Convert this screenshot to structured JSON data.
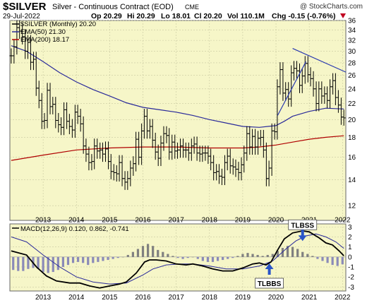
{
  "header": {
    "symbol": "$SILVER",
    "description": "Silver - Continuous Contract (EOD)",
    "exchange": "CME",
    "date": "29-Jul-2022",
    "watermark": "@ StockCharts.com",
    "open": "Op 20.29",
    "high": "Hi 20.29",
    "low": "Lo 18.01",
    "close": "Cl 20.20",
    "volume": "Vol 110.1M",
    "change": "Chg -0.15 (-0.76%)",
    "change_arrow": "down-triangle-icon"
  },
  "colors": {
    "panel_bg": "#f6f6c8",
    "price": "#000000",
    "ema50": "#2a2a9a",
    "ema200": "#b00000",
    "trendline": "#2a3ab0",
    "histogram": "#8a8ab8",
    "histogram_positive": "#808080",
    "arrow": "#2a55c8",
    "down": "#c00020"
  },
  "chart_data": [
    {
      "type": "candlestick",
      "title": "$SILVER Silver - Continuous Contract (EOD) CME",
      "frequency": "Monthly",
      "legend": [
        {
          "label": "$SILVER (Monthly) 20.20",
          "color": "#000000",
          "marker": "line"
        },
        {
          "label": "EMA(50) 21.30",
          "color": "#2a2a9a",
          "marker": "line"
        },
        {
          "label": "EMA(200) 18.17",
          "color": "#b00000",
          "marker": "line"
        }
      ],
      "legend_position": "top-left",
      "y_scale": "log",
      "ylim": [
        11,
        36
      ],
      "y_ticks": [
        12,
        14,
        16,
        18,
        20,
        22,
        24,
        26,
        28,
        30,
        32,
        34,
        36
      ],
      "x_range": [
        2012.5,
        2022.6
      ],
      "x_ticks": [
        "2013",
        "2014",
        "2015",
        "2016",
        "2017",
        "2018",
        "2019",
        "2020",
        "2021",
        "2022"
      ],
      "grid": true,
      "close_series": [
        [
          2012.54,
          29.2
        ],
        [
          2012.625,
          30.8
        ],
        [
          2012.71,
          34.5
        ],
        [
          2012.79,
          33.8
        ],
        [
          2012.875,
          32.7
        ],
        [
          2012.96,
          30.0
        ],
        [
          2013.04,
          31.6
        ],
        [
          2013.125,
          28.1
        ],
        [
          2013.21,
          28.6
        ],
        [
          2013.29,
          24.1
        ],
        [
          2013.375,
          22.4
        ],
        [
          2013.46,
          19.8
        ],
        [
          2013.54,
          19.9
        ],
        [
          2013.625,
          23.8
        ],
        [
          2013.71,
          21.6
        ],
        [
          2013.79,
          21.9
        ],
        [
          2013.875,
          19.9
        ],
        [
          2013.96,
          19.4
        ],
        [
          2014.04,
          19.1
        ],
        [
          2014.125,
          21.2
        ],
        [
          2014.21,
          19.8
        ],
        [
          2014.29,
          19.2
        ],
        [
          2014.375,
          18.8
        ],
        [
          2014.46,
          20.9
        ],
        [
          2014.54,
          20.4
        ],
        [
          2014.625,
          19.5
        ],
        [
          2014.71,
          17.1
        ],
        [
          2014.79,
          16.3
        ],
        [
          2014.875,
          15.5
        ],
        [
          2014.96,
          15.6
        ],
        [
          2015.04,
          17.1
        ],
        [
          2015.125,
          16.6
        ],
        [
          2015.21,
          16.7
        ],
        [
          2015.29,
          16.3
        ],
        [
          2015.375,
          16.8
        ],
        [
          2015.46,
          15.6
        ],
        [
          2015.54,
          14.7
        ],
        [
          2015.625,
          14.6
        ],
        [
          2015.71,
          14.5
        ],
        [
          2015.79,
          15.5
        ],
        [
          2015.875,
          14.1
        ],
        [
          2015.96,
          13.8
        ],
        [
          2016.04,
          14.1
        ],
        [
          2016.125,
          15.0
        ],
        [
          2016.21,
          15.4
        ],
        [
          2016.29,
          17.8
        ],
        [
          2016.375,
          16.0
        ],
        [
          2016.46,
          18.7
        ],
        [
          2016.54,
          20.4
        ],
        [
          2016.625,
          18.7
        ],
        [
          2016.71,
          19.2
        ],
        [
          2016.79,
          17.7
        ],
        [
          2016.875,
          16.5
        ],
        [
          2016.96,
          15.9
        ],
        [
          2017.04,
          17.4
        ],
        [
          2017.125,
          18.4
        ],
        [
          2017.21,
          18.2
        ],
        [
          2017.29,
          16.5
        ],
        [
          2017.375,
          17.5
        ],
        [
          2017.46,
          16.6
        ],
        [
          2017.54,
          16.7
        ],
        [
          2017.625,
          17.1
        ],
        [
          2017.71,
          16.7
        ],
        [
          2017.79,
          16.7
        ],
        [
          2017.875,
          16.4
        ],
        [
          2017.96,
          17.1
        ],
        [
          2018.04,
          17.3
        ],
        [
          2018.125,
          16.4
        ],
        [
          2018.21,
          16.3
        ],
        [
          2018.29,
          16.4
        ],
        [
          2018.375,
          16.4
        ],
        [
          2018.46,
          16.1
        ],
        [
          2018.54,
          15.5
        ],
        [
          2018.625,
          14.6
        ],
        [
          2018.71,
          14.7
        ],
        [
          2018.79,
          14.3
        ],
        [
          2018.875,
          14.2
        ],
        [
          2018.96,
          15.5
        ],
        [
          2019.04,
          16.1
        ],
        [
          2019.125,
          15.2
        ],
        [
          2019.21,
          15.1
        ],
        [
          2019.29,
          14.9
        ],
        [
          2019.375,
          14.6
        ],
        [
          2019.46,
          15.3
        ],
        [
          2019.54,
          16.4
        ],
        [
          2019.625,
          18.4
        ],
        [
          2019.71,
          17.0
        ],
        [
          2019.79,
          18.1
        ],
        [
          2019.875,
          17.0
        ],
        [
          2019.96,
          17.9
        ],
        [
          2020.04,
          18.0
        ],
        [
          2020.125,
          16.7
        ],
        [
          2020.21,
          14.1
        ],
        [
          2020.29,
          15.0
        ],
        [
          2020.375,
          18.7
        ],
        [
          2020.46,
          18.6
        ],
        [
          2020.54,
          24.3
        ],
        [
          2020.625,
          26.9
        ],
        [
          2020.71,
          23.4
        ],
        [
          2020.79,
          23.9
        ],
        [
          2020.875,
          22.6
        ],
        [
          2020.96,
          26.4
        ],
        [
          2021.04,
          27.1
        ],
        [
          2021.125,
          26.7
        ],
        [
          2021.21,
          24.5
        ],
        [
          2021.29,
          25.9
        ],
        [
          2021.375,
          27.9
        ],
        [
          2021.46,
          26.1
        ],
        [
          2021.54,
          25.5
        ],
        [
          2021.625,
          24.0
        ],
        [
          2021.71,
          22.0
        ],
        [
          2021.79,
          24.0
        ],
        [
          2021.875,
          23.0
        ],
        [
          2021.96,
          23.3
        ],
        [
          2022.04,
          22.4
        ],
        [
          2022.125,
          24.3
        ],
        [
          2022.21,
          25.2
        ],
        [
          2022.29,
          22.8
        ],
        [
          2022.375,
          21.8
        ],
        [
          2022.46,
          20.3
        ],
        [
          2022.54,
          20.2
        ]
      ],
      "ema50": [
        [
          2012.54,
          31.0
        ],
        [
          2013.0,
          30.0
        ],
        [
          2013.5,
          28.2
        ],
        [
          2014.0,
          26.4
        ],
        [
          2014.5,
          25.0
        ],
        [
          2015.0,
          23.9
        ],
        [
          2015.5,
          23.0
        ],
        [
          2016.0,
          22.1
        ],
        [
          2016.5,
          21.5
        ],
        [
          2017.0,
          21.2
        ],
        [
          2017.5,
          20.9
        ],
        [
          2018.0,
          20.5
        ],
        [
          2018.5,
          20.0
        ],
        [
          2019.0,
          19.6
        ],
        [
          2019.5,
          19.2
        ],
        [
          2020.0,
          19.1
        ],
        [
          2020.5,
          19.3
        ],
        [
          2020.75,
          19.8
        ],
        [
          2021.0,
          20.4
        ],
        [
          2021.5,
          21.0
        ],
        [
          2022.0,
          21.4
        ],
        [
          2022.54,
          21.3
        ]
      ],
      "ema200": [
        [
          2012.54,
          15.7
        ],
        [
          2013.5,
          16.2
        ],
        [
          2014.5,
          16.7
        ],
        [
          2015.5,
          16.9
        ],
        [
          2016.5,
          17.0
        ],
        [
          2017.5,
          17.0
        ],
        [
          2018.5,
          16.9
        ],
        [
          2019.5,
          16.9
        ],
        [
          2020.0,
          17.0
        ],
        [
          2020.5,
          17.2
        ],
        [
          2021.0,
          17.5
        ],
        [
          2021.5,
          17.8
        ],
        [
          2022.0,
          18.0
        ],
        [
          2022.54,
          18.17
        ]
      ],
      "trendlines": [
        {
          "from": [
            2021.0,
            30.5
          ],
          "to": [
            2022.6,
            26.5
          ]
        },
        {
          "from": [
            2020.55,
            20.5
          ],
          "to": [
            2021.4,
            28.2
          ]
        }
      ]
    },
    {
      "type": "line",
      "title": "MACD(12,26,9) 0.120, 0.862, -0.741",
      "legend": [
        {
          "label": "MACD(12,26,9) 0.120, 0.862, -0.741",
          "color": "#000000",
          "marker": "line"
        }
      ],
      "legend_position": "top-left",
      "ylim": [
        -3.4,
        3.3
      ],
      "y_ticks": [
        -3,
        -2,
        -1,
        0,
        1,
        2,
        3
      ],
      "x_range": [
        2012.5,
        2022.6
      ],
      "x_ticks": [
        "2013",
        "2014",
        "2015",
        "2016",
        "2017",
        "2018",
        "2019",
        "2020",
        "2021",
        "2022"
      ],
      "grid": true,
      "macd": [
        [
          2012.54,
          0.6
        ],
        [
          2013.0,
          0.2
        ],
        [
          2013.3,
          -1.0
        ],
        [
          2013.6,
          -1.9
        ],
        [
          2013.9,
          -2.4
        ],
        [
          2014.3,
          -2.6
        ],
        [
          2014.6,
          -2.6
        ],
        [
          2014.9,
          -2.9
        ],
        [
          2015.2,
          -3.1
        ],
        [
          2015.5,
          -2.9
        ],
        [
          2015.8,
          -2.7
        ],
        [
          2016.0,
          -2.5
        ],
        [
          2016.3,
          -1.6
        ],
        [
          2016.55,
          -0.5
        ],
        [
          2016.7,
          -0.3
        ],
        [
          2016.9,
          -0.3
        ],
        [
          2017.2,
          -0.4
        ],
        [
          2017.5,
          -0.7
        ],
        [
          2017.8,
          -0.8
        ],
        [
          2018.0,
          -0.7
        ],
        [
          2018.3,
          -0.9
        ],
        [
          2018.6,
          -1.2
        ],
        [
          2018.9,
          -1.4
        ],
        [
          2019.2,
          -1.4
        ],
        [
          2019.5,
          -1.1
        ],
        [
          2019.8,
          -0.7
        ],
        [
          2020.0,
          -0.6
        ],
        [
          2020.2,
          -0.8
        ],
        [
          2020.35,
          -0.5
        ],
        [
          2020.55,
          0.7
        ],
        [
          2020.75,
          1.8
        ],
        [
          2021.0,
          2.4
        ],
        [
          2021.3,
          2.6
        ],
        [
          2021.5,
          2.5
        ],
        [
          2021.8,
          1.9
        ],
        [
          2022.0,
          1.4
        ],
        [
          2022.2,
          1.2
        ],
        [
          2022.4,
          0.6
        ],
        [
          2022.54,
          0.12
        ]
      ],
      "signal": [
        [
          2012.54,
          2.0
        ],
        [
          2013.0,
          1.5
        ],
        [
          2013.5,
          0.2
        ],
        [
          2014.0,
          -1.0
        ],
        [
          2014.5,
          -2.0
        ],
        [
          2015.0,
          -2.5
        ],
        [
          2015.5,
          -2.7
        ],
        [
          2016.0,
          -2.6
        ],
        [
          2016.5,
          -1.8
        ],
        [
          2016.8,
          -1.2
        ],
        [
          2017.2,
          -0.8
        ],
        [
          2017.6,
          -0.7
        ],
        [
          2018.0,
          -0.7
        ],
        [
          2018.5,
          -0.9
        ],
        [
          2019.0,
          -1.2
        ],
        [
          2019.5,
          -1.2
        ],
        [
          2020.0,
          -0.9
        ],
        [
          2020.4,
          -0.4
        ],
        [
          2020.8,
          0.8
        ],
        [
          2021.1,
          1.6
        ],
        [
          2021.4,
          2.1
        ],
        [
          2021.7,
          2.3
        ],
        [
          2022.0,
          2.0
        ],
        [
          2022.3,
          1.5
        ],
        [
          2022.54,
          0.86
        ]
      ],
      "histogram": [
        [
          2012.6,
          -1.3
        ],
        [
          2012.75,
          -1.4
        ],
        [
          2012.9,
          -1.4
        ],
        [
          2013.05,
          -1.2
        ],
        [
          2013.2,
          -1.1
        ],
        [
          2013.35,
          -1.2
        ],
        [
          2013.5,
          -1.5
        ],
        [
          2013.65,
          -1.6
        ],
        [
          2013.8,
          -1.5
        ],
        [
          2013.95,
          -1.3
        ],
        [
          2014.1,
          -1.0
        ],
        [
          2014.25,
          -0.8
        ],
        [
          2014.4,
          -0.6
        ],
        [
          2014.55,
          -0.5
        ],
        [
          2014.7,
          -0.6
        ],
        [
          2014.85,
          -0.8
        ],
        [
          2015.0,
          -0.6
        ],
        [
          2015.15,
          -0.5
        ],
        [
          2015.3,
          -0.4
        ],
        [
          2015.45,
          -0.3
        ],
        [
          2015.6,
          -0.2
        ],
        [
          2015.75,
          -0.1
        ],
        [
          2015.9,
          0.0
        ],
        [
          2016.05,
          0.2
        ],
        [
          2016.2,
          0.5
        ],
        [
          2016.35,
          0.8
        ],
        [
          2016.5,
          1.1
        ],
        [
          2016.65,
          1.3
        ],
        [
          2016.8,
          1.1
        ],
        [
          2016.95,
          0.7
        ],
        [
          2017.1,
          0.5
        ],
        [
          2017.25,
          0.3
        ],
        [
          2017.4,
          0.1
        ],
        [
          2017.55,
          -0.1
        ],
        [
          2017.7,
          -0.2
        ],
        [
          2017.85,
          -0.1
        ],
        [
          2018.0,
          0.0
        ],
        [
          2018.15,
          -0.2
        ],
        [
          2018.3,
          -0.4
        ],
        [
          2018.45,
          -0.5
        ],
        [
          2018.6,
          -0.5
        ],
        [
          2018.75,
          -0.4
        ],
        [
          2018.9,
          -0.3
        ],
        [
          2019.05,
          -0.2
        ],
        [
          2019.2,
          -0.1
        ],
        [
          2019.35,
          0.1
        ],
        [
          2019.5,
          0.3
        ],
        [
          2019.65,
          0.4
        ],
        [
          2019.8,
          0.3
        ],
        [
          2019.95,
          0.2
        ],
        [
          2020.1,
          0.1
        ],
        [
          2020.25,
          0.2
        ],
        [
          2020.4,
          0.3
        ],
        [
          2020.55,
          0.6
        ],
        [
          2020.7,
          0.9
        ],
        [
          2020.85,
          1.1
        ],
        [
          2021.0,
          1.0
        ],
        [
          2021.15,
          0.8
        ],
        [
          2021.3,
          0.5
        ],
        [
          2021.45,
          0.3
        ],
        [
          2021.6,
          0.1
        ],
        [
          2021.75,
          -0.2
        ],
        [
          2021.9,
          -0.4
        ],
        [
          2022.05,
          -0.6
        ],
        [
          2022.2,
          -0.8
        ],
        [
          2022.35,
          -0.9
        ],
        [
          2022.5,
          -0.74
        ]
      ],
      "annotations": [
        {
          "text": "TLBBS",
          "x": 2020.3,
          "y": -2.2,
          "arrow": "up-arrow-icon"
        },
        {
          "text": "TLBSS",
          "x": 2021.3,
          "y": 3.0,
          "arrow": "down-arrow-icon"
        }
      ]
    }
  ]
}
